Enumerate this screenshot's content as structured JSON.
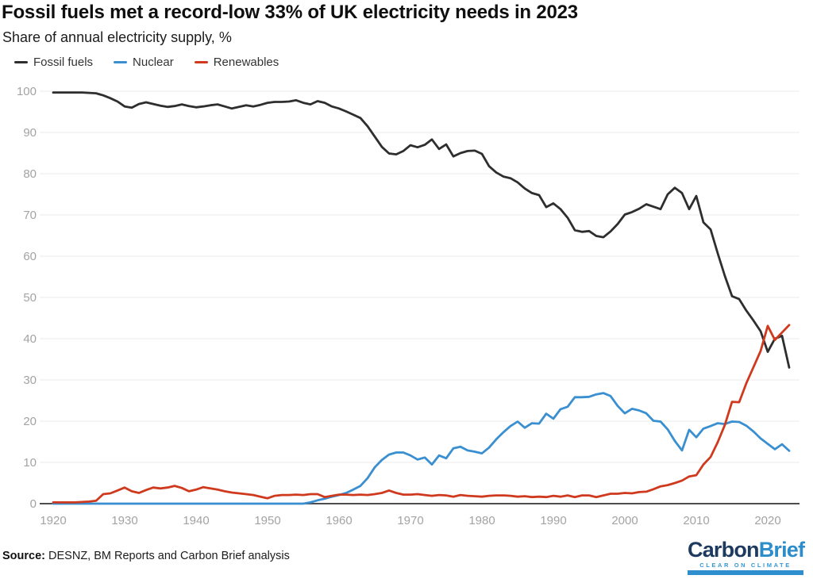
{
  "header": {
    "title": "Fossil fuels met a record-low 33% of UK electricity needs in 2023",
    "subtitle": "Share of annual electricity supply, %"
  },
  "legend": [
    {
      "label": "Fossil fuels",
      "color": "#2e2e2e"
    },
    {
      "label": "Nuclear",
      "color": "#3a8fd1"
    },
    {
      "label": "Renewables",
      "color": "#cf3a1e"
    }
  ],
  "colors": {
    "grid": "#ebebeb",
    "axis_line": "#4d4d4d",
    "tick_label": "#a3a3a3",
    "fossil": "#2e2e2e",
    "nuclear": "#3a8fd1",
    "renewables": "#cf3a1e"
  },
  "chart_data": {
    "type": "line",
    "title": "Fossil fuels met a record-low 33% of UK electricity needs in 2023",
    "ylabel": "Share of annual electricity supply, %",
    "xlabel": "",
    "ylim": [
      0,
      100
    ],
    "xlim": [
      1918,
      2025
    ],
    "yticks": [
      0,
      10,
      20,
      30,
      40,
      50,
      60,
      70,
      80,
      90,
      100
    ],
    "xticks": [
      1920,
      1930,
      1940,
      1950,
      1960,
      1970,
      1980,
      1990,
      2000,
      2010,
      2020
    ],
    "grid": "horizontal",
    "legend_position": "top-left",
    "x": [
      1920,
      1921,
      1922,
      1923,
      1924,
      1925,
      1926,
      1927,
      1928,
      1929,
      1930,
      1931,
      1932,
      1933,
      1934,
      1935,
      1936,
      1937,
      1938,
      1939,
      1940,
      1941,
      1942,
      1943,
      1944,
      1945,
      1946,
      1947,
      1948,
      1949,
      1950,
      1951,
      1952,
      1953,
      1954,
      1955,
      1956,
      1957,
      1958,
      1959,
      1960,
      1961,
      1962,
      1963,
      1964,
      1965,
      1966,
      1967,
      1968,
      1969,
      1970,
      1971,
      1972,
      1973,
      1974,
      1975,
      1976,
      1977,
      1978,
      1979,
      1980,
      1981,
      1982,
      1983,
      1984,
      1985,
      1986,
      1987,
      1988,
      1989,
      1990,
      1991,
      1992,
      1993,
      1994,
      1995,
      1996,
      1997,
      1998,
      1999,
      2000,
      2001,
      2002,
      2003,
      2004,
      2005,
      2006,
      2007,
      2008,
      2009,
      2010,
      2011,
      2012,
      2013,
      2014,
      2015,
      2016,
      2017,
      2018,
      2019,
      2020,
      2021,
      2022,
      2023
    ],
    "series": [
      {
        "name": "Fossil fuels",
        "color": "#2e2e2e",
        "values": [
          99.7,
          99.7,
          99.7,
          99.7,
          99.7,
          99.6,
          99.5,
          99.0,
          98.3,
          97.5,
          96.3,
          96.0,
          96.9,
          97.3,
          96.9,
          96.5,
          96.2,
          96.4,
          96.8,
          96.4,
          96.1,
          96.3,
          96.6,
          96.8,
          96.3,
          95.8,
          96.2,
          96.6,
          96.3,
          96.7,
          97.2,
          97.4,
          97.4,
          97.5,
          97.8,
          97.2,
          96.8,
          97.6,
          97.2,
          96.3,
          95.8,
          95.1,
          94.3,
          93.5,
          91.5,
          89.0,
          86.5,
          84.9,
          84.7,
          85.5,
          86.9,
          86.4,
          87.0,
          88.3,
          86.0,
          87.1,
          84.2,
          85.0,
          85.5,
          85.6,
          84.8,
          81.8,
          80.3,
          79.3,
          78.9,
          77.9,
          76.4,
          75.3,
          74.8,
          71.9,
          72.8,
          71.4,
          69.3,
          66.3,
          65.9,
          66.1,
          64.9,
          64.6,
          66.0,
          67.8,
          70.1,
          70.7,
          71.5,
          72.6,
          72.0,
          71.4,
          75.0,
          76.6,
          75.3,
          71.4,
          74.6,
          68.2,
          66.5,
          60.7,
          55.2,
          50.3,
          49.6,
          46.8,
          44.4,
          41.8,
          36.8,
          40.0,
          40.7,
          33.0
        ]
      },
      {
        "name": "Nuclear",
        "color": "#3a8fd1",
        "values": [
          0,
          0,
          0,
          0,
          0,
          0,
          0,
          0,
          0,
          0,
          0,
          0,
          0,
          0,
          0,
          0,
          0,
          0,
          0,
          0,
          0,
          0,
          0,
          0,
          0,
          0,
          0,
          0,
          0,
          0,
          0,
          0,
          0,
          0,
          0,
          0,
          0.3,
          0.8,
          1.2,
          1.7,
          2.1,
          2.6,
          3.4,
          4.3,
          6.2,
          8.8,
          10.6,
          11.9,
          12.4,
          12.4,
          11.7,
          10.7,
          11.2,
          9.5,
          11.7,
          11.0,
          13.4,
          13.8,
          12.9,
          12.6,
          12.2,
          13.6,
          15.6,
          17.3,
          18.8,
          19.9,
          18.4,
          19.5,
          19.4,
          21.8,
          20.6,
          22.9,
          23.5,
          25.8,
          25.8,
          25.9,
          26.5,
          26.8,
          26.1,
          23.7,
          21.9,
          23.0,
          22.6,
          21.9,
          20.1,
          19.9,
          18.0,
          15.2,
          12.9,
          17.9,
          16.1,
          18.2,
          18.8,
          19.5,
          19.3,
          19.9,
          19.8,
          18.9,
          17.5,
          15.8,
          14.5,
          13.2,
          14.4,
          12.8
        ]
      },
      {
        "name": "Renewables",
        "color": "#cf3a1e",
        "values": [
          0.3,
          0.3,
          0.3,
          0.3,
          0.4,
          0.5,
          0.7,
          2.3,
          2.5,
          3.2,
          3.9,
          3.0,
          2.6,
          3.3,
          3.9,
          3.7,
          3.9,
          4.3,
          3.8,
          3.0,
          3.4,
          4.0,
          3.7,
          3.4,
          3.0,
          2.7,
          2.5,
          2.3,
          2.1,
          1.7,
          1.3,
          1.9,
          2.1,
          2.1,
          2.2,
          2.1,
          2.3,
          2.3,
          1.6,
          1.9,
          2.2,
          2.2,
          2.1,
          2.2,
          2.1,
          2.3,
          2.6,
          3.2,
          2.6,
          2.2,
          2.2,
          2.3,
          2.1,
          1.9,
          2.1,
          2.0,
          1.7,
          2.1,
          1.9,
          1.8,
          1.7,
          1.9,
          2.0,
          2.0,
          1.9,
          1.7,
          1.8,
          1.6,
          1.7,
          1.6,
          1.9,
          1.7,
          2.0,
          1.6,
          2.0,
          2.0,
          1.6,
          2.0,
          2.4,
          2.4,
          2.6,
          2.5,
          2.8,
          2.9,
          3.5,
          4.2,
          4.5,
          5.0,
          5.6,
          6.6,
          6.9,
          9.5,
          11.3,
          14.9,
          19.1,
          24.7,
          24.6,
          29.2,
          33.1,
          37.0,
          43.1,
          39.7,
          41.5,
          43.3
        ]
      }
    ]
  },
  "footer": {
    "source_label": "Source:",
    "source_text": " DESNZ, BM Reports and Carbon Brief analysis"
  },
  "logo": {
    "word_part1": "Carbon",
    "word_part2": "Brief",
    "tagline": "CLEAR ON CLIMATE"
  }
}
